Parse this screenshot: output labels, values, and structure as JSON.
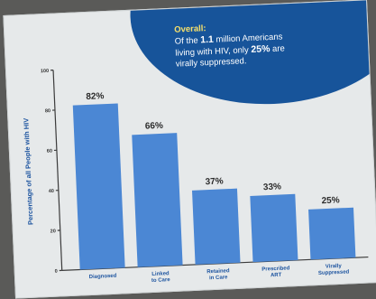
{
  "callout": {
    "title": "Overall:",
    "line1_pre": "Of the ",
    "line1_num": "1.1",
    "line1_post": " million Americans",
    "line2_pre": "living with HIV, only ",
    "line2_num": "25%",
    "line2_post": " are",
    "line3": "virally suppressed."
  },
  "colors": {
    "bar": "#4b87d4",
    "callout": "#17549a",
    "callout_title": "#f7e06a"
  },
  "chart_data": {
    "type": "bar",
    "categories": [
      [
        "Diagnosed"
      ],
      [
        "Linked",
        "to Care"
      ],
      [
        "Retained",
        "in Care"
      ],
      [
        "Prescribed",
        "ART"
      ],
      [
        "Virally",
        "Suppressed"
      ]
    ],
    "values": [
      82,
      66,
      37,
      33,
      25
    ],
    "value_labels": [
      "82%",
      "66%",
      "37%",
      "33%",
      "25%"
    ],
    "ylabel": "Percentage of all People with HIV",
    "ylim": [
      0,
      100
    ],
    "yticks": [
      0,
      20,
      40,
      60,
      80,
      100
    ],
    "grid": false
  }
}
